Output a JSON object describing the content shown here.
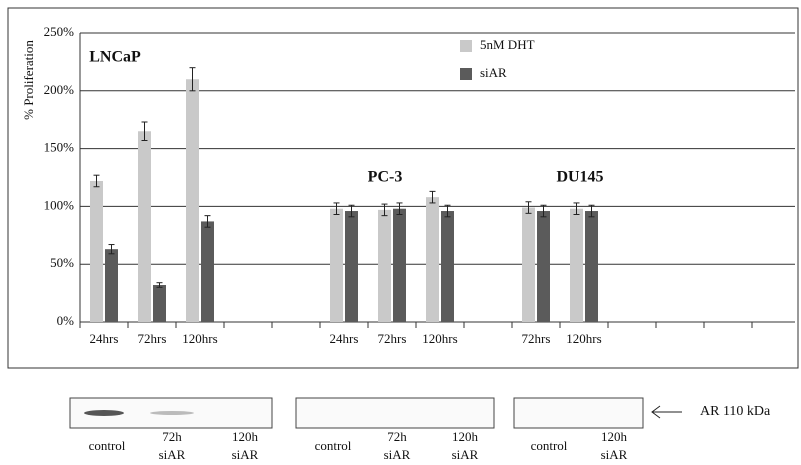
{
  "chart_data": {
    "type": "bar",
    "y_label": "% Proliferation",
    "categories": [
      "24hrs",
      "72hrs",
      "120hrs",
      null,
      null,
      "24hrs",
      "72hrs",
      "120hrs",
      null,
      "72hrs",
      "120hrs",
      null,
      null,
      null,
      null
    ],
    "series": [
      {
        "name": "5nM DHT",
        "color": "#c9c9c9",
        "values": [
          122,
          165,
          210,
          null,
          null,
          98,
          97,
          108,
          null,
          99,
          98,
          null,
          null,
          null,
          null
        ],
        "errors": [
          5,
          8,
          10,
          null,
          null,
          5,
          5,
          5,
          null,
          5,
          5,
          null,
          null,
          null,
          null
        ]
      },
      {
        "name": "siAR",
        "color": "#5b5b5b",
        "values": [
          63,
          32,
          87,
          null,
          null,
          96,
          98,
          96,
          null,
          96,
          96,
          null,
          null,
          null,
          null
        ],
        "errors": [
          4,
          2,
          5,
          null,
          null,
          5,
          5,
          5,
          null,
          5,
          5,
          null,
          null,
          null,
          null
        ]
      }
    ],
    "annotations": [
      "LNCaP",
      "PC-3",
      "DU145"
    ],
    "ylim": [
      0,
      250
    ],
    "yticks": [
      {
        "value": 0,
        "label": "0%"
      },
      {
        "value": 50,
        "label": "50%"
      },
      {
        "value": 100,
        "label": "100%"
      },
      {
        "value": 150,
        "label": "150%"
      },
      {
        "value": 200,
        "label": "200%"
      },
      {
        "value": 250,
        "label": "250%"
      }
    ],
    "grid": true
  },
  "blot": {
    "panels": [
      {
        "lanes": [
          [
            "control"
          ],
          [
            "72h",
            "siAR"
          ],
          [
            "120h",
            "siAR"
          ]
        ]
      },
      {
        "lanes": [
          [
            "control"
          ],
          [
            "72h",
            "siAR"
          ],
          [
            "120h",
            "siAR"
          ]
        ]
      },
      {
        "lanes": [
          [
            "control"
          ],
          [
            "120h",
            "siAR"
          ]
        ]
      }
    ],
    "marker_label": "AR  110 kDa"
  }
}
